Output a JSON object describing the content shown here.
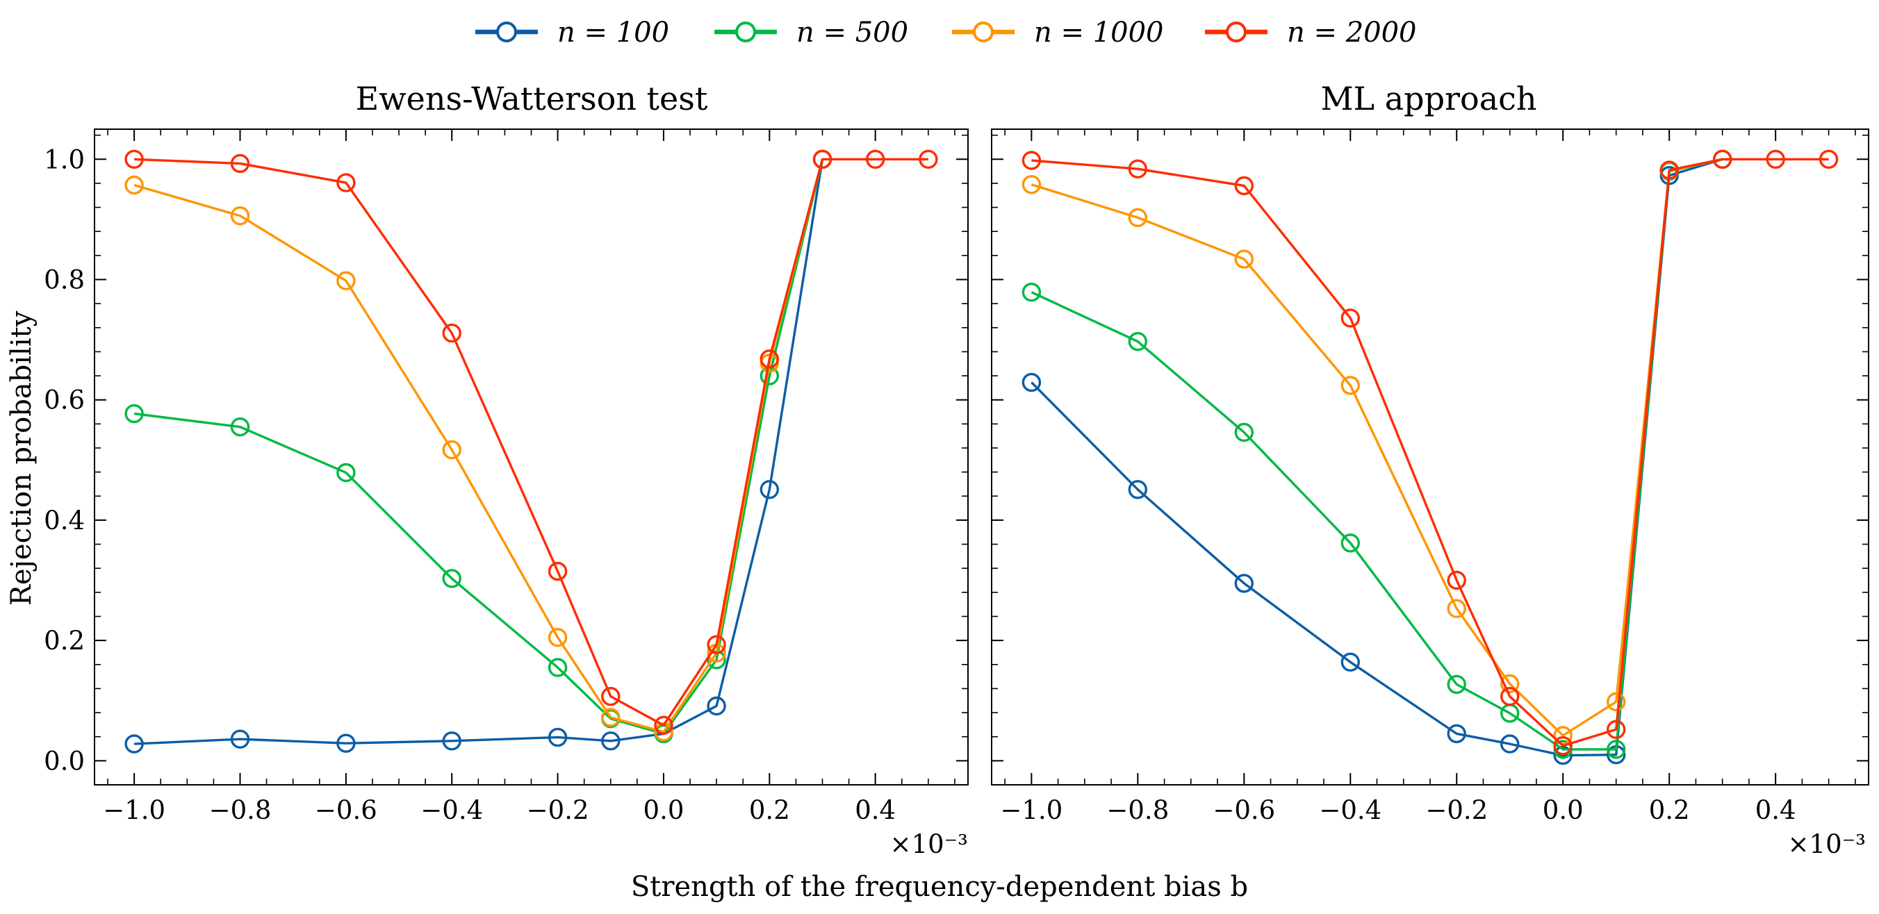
{
  "chart_data": {
    "type": "line",
    "legend": {
      "placement": "top-center",
      "entries": [
        {
          "label": "n = 100",
          "color": "#0c5da5"
        },
        {
          "label": "n = 500",
          "color": "#00b945"
        },
        {
          "label": "n = 1000",
          "color": "#ff9500"
        },
        {
          "label": "n = 2000",
          "color": "#ff2c00"
        }
      ]
    },
    "xlabel": "Strength of the frequency-dependent bias b",
    "ylabel": "Rejection probability",
    "x_multiplier_label": "×10⁻³",
    "x_ticks": [
      -1.0,
      -0.8,
      -0.6,
      -0.4,
      -0.2,
      0.0,
      0.2,
      0.4
    ],
    "x_tick_labels": [
      "−1.0",
      "−0.8",
      "−0.6",
      "−0.4",
      "−0.2",
      "0.0",
      "0.2",
      "0.4"
    ],
    "y_ticks": [
      0.0,
      0.2,
      0.4,
      0.6,
      0.8,
      1.0
    ],
    "y_tick_labels": [
      "0.0",
      "0.2",
      "0.4",
      "0.6",
      "0.8",
      "1.0"
    ],
    "xlim": [
      -1.075,
      0.575
    ],
    "ylim": [
      -0.04,
      1.05
    ],
    "panels": [
      {
        "title": "Ewens-Watterson test",
        "series": [
          {
            "name": "n = 100",
            "color": "#0c5da5",
            "x": [
              -1.0,
              -0.8,
              -0.6,
              -0.4,
              -0.2,
              -0.1,
              0.0,
              0.1,
              0.2,
              0.3
            ],
            "y": [
              0.028,
              0.036,
              0.029,
              0.033,
              0.039,
              0.033,
              0.045,
              0.091,
              0.451,
              1.0
            ]
          },
          {
            "name": "n = 500",
            "color": "#00b945",
            "x": [
              -1.0,
              -0.8,
              -0.6,
              -0.4,
              -0.2,
              -0.1,
              0.0,
              0.1,
              0.2,
              0.3
            ],
            "y": [
              0.577,
              0.555,
              0.479,
              0.303,
              0.155,
              0.07,
              0.045,
              0.168,
              0.64,
              1.0
            ]
          },
          {
            "name": "n = 1000",
            "color": "#ff9500",
            "x": [
              -1.0,
              -0.8,
              -0.6,
              -0.4,
              -0.2,
              -0.1,
              0.0,
              0.1,
              0.2,
              0.3
            ],
            "y": [
              0.957,
              0.906,
              0.798,
              0.517,
              0.205,
              0.072,
              0.048,
              0.179,
              0.661,
              1.0
            ]
          },
          {
            "name": "n = 2000",
            "color": "#ff2c00",
            "x": [
              -1.0,
              -0.8,
              -0.6,
              -0.4,
              -0.2,
              -0.1,
              0.0,
              0.1,
              0.2,
              0.3,
              0.4,
              0.5
            ],
            "y": [
              1.0,
              0.993,
              0.961,
              0.711,
              0.315,
              0.107,
              0.059,
              0.193,
              0.668,
              1.0,
              1.0,
              1.0
            ]
          }
        ]
      },
      {
        "title": "ML approach",
        "series": [
          {
            "name": "n = 100",
            "color": "#0c5da5",
            "x": [
              -1.0,
              -0.8,
              -0.6,
              -0.4,
              -0.2,
              -0.1,
              0.0,
              0.1,
              0.2,
              0.3
            ],
            "y": [
              0.629,
              0.451,
              0.295,
              0.164,
              0.045,
              0.028,
              0.009,
              0.01,
              0.973,
              1.0
            ]
          },
          {
            "name": "n = 500",
            "color": "#00b945",
            "x": [
              -1.0,
              -0.8,
              -0.6,
              -0.4,
              -0.2,
              -0.1,
              0.0,
              0.1,
              0.2,
              0.3
            ],
            "y": [
              0.779,
              0.697,
              0.546,
              0.362,
              0.127,
              0.079,
              0.019,
              0.019,
              0.98,
              1.0
            ]
          },
          {
            "name": "n = 1000",
            "color": "#ff9500",
            "x": [
              -1.0,
              -0.8,
              -0.6,
              -0.4,
              -0.2,
              -0.1,
              0.0,
              0.1,
              0.2,
              0.3
            ],
            "y": [
              0.958,
              0.903,
              0.834,
              0.624,
              0.253,
              0.128,
              0.042,
              0.098,
              0.981,
              1.0
            ]
          },
          {
            "name": "n = 2000",
            "color": "#ff2c00",
            "x": [
              -1.0,
              -0.8,
              -0.6,
              -0.4,
              -0.2,
              -0.1,
              0.0,
              0.1,
              0.2,
              0.3,
              0.4,
              0.5
            ],
            "y": [
              0.998,
              0.984,
              0.956,
              0.736,
              0.3,
              0.107,
              0.025,
              0.052,
              0.982,
              1.0,
              1.0,
              1.0
            ]
          }
        ]
      }
    ]
  }
}
